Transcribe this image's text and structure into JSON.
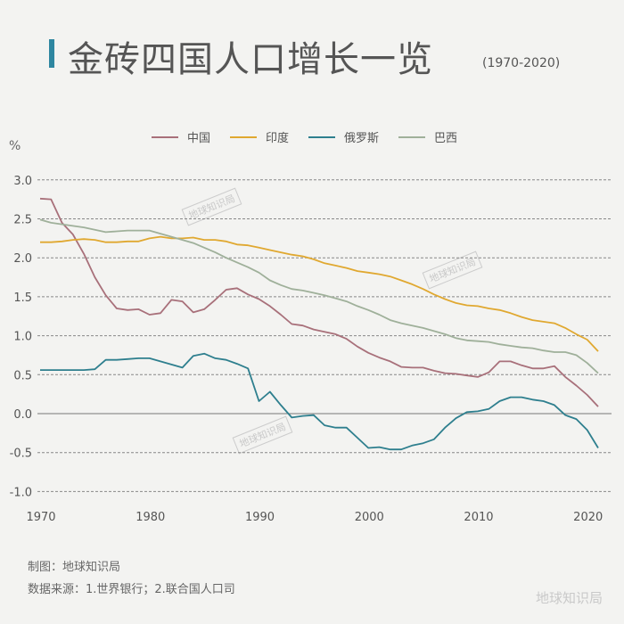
{
  "header": {
    "title": "金砖四国人口增长一览",
    "subtitle": "(1970-2020)"
  },
  "chart_data": {
    "type": "line",
    "title": "金砖四国人口增长一览",
    "subtitle": "(1970-2020)",
    "ylabel": "%",
    "xlabel": "",
    "xlim": [
      1970,
      2021
    ],
    "ylim": [
      -1.0,
      3.0
    ],
    "x_ticks": [
      "1970",
      "1980",
      "1990",
      "2000",
      "2010",
      "2020"
    ],
    "y_ticks": [
      "3.0",
      "2.5",
      "2.0",
      "1.5",
      "1.0",
      "0.5",
      "0.0",
      "-0.5",
      "-1.0"
    ],
    "grid": "horizontal dashed",
    "legend_position": "top",
    "x_start": 1970,
    "series": [
      {
        "name": "中国",
        "color": "#a8707a",
        "values": [
          2.76,
          2.75,
          2.45,
          2.3,
          2.05,
          1.75,
          1.52,
          1.35,
          1.33,
          1.34,
          1.27,
          1.29,
          1.46,
          1.44,
          1.3,
          1.34,
          1.46,
          1.59,
          1.61,
          1.53,
          1.47,
          1.38,
          1.27,
          1.15,
          1.13,
          1.08,
          1.05,
          1.02,
          0.96,
          0.86,
          0.78,
          0.72,
          0.67,
          0.6,
          0.59,
          0.59,
          0.55,
          0.52,
          0.51,
          0.49,
          0.47,
          0.53,
          0.67,
          0.67,
          0.62,
          0.58,
          0.58,
          0.61,
          0.47,
          0.36,
          0.24,
          0.09
        ]
      },
      {
        "name": "印度",
        "color": "#e0a830",
        "values": [
          2.2,
          2.2,
          2.21,
          2.23,
          2.24,
          2.23,
          2.2,
          2.2,
          2.21,
          2.21,
          2.25,
          2.27,
          2.25,
          2.25,
          2.26,
          2.23,
          2.23,
          2.21,
          2.17,
          2.16,
          2.13,
          2.1,
          2.07,
          2.04,
          2.02,
          1.98,
          1.93,
          1.9,
          1.87,
          1.83,
          1.81,
          1.79,
          1.76,
          1.71,
          1.66,
          1.6,
          1.53,
          1.47,
          1.42,
          1.39,
          1.38,
          1.35,
          1.33,
          1.29,
          1.24,
          1.2,
          1.18,
          1.16,
          1.1,
          1.02,
          0.95,
          0.8
        ]
      },
      {
        "name": "俄罗斯",
        "color": "#2e7f8e",
        "values": [
          0.56,
          0.56,
          0.56,
          0.56,
          0.56,
          0.57,
          0.69,
          0.69,
          0.7,
          0.71,
          0.71,
          0.67,
          0.63,
          0.59,
          0.74,
          0.77,
          0.71,
          0.69,
          0.64,
          0.58,
          0.16,
          0.28,
          0.11,
          -0.05,
          -0.03,
          -0.02,
          -0.15,
          -0.18,
          -0.18,
          -0.31,
          -0.44,
          -0.43,
          -0.46,
          -0.46,
          -0.41,
          -0.38,
          -0.33,
          -0.18,
          -0.06,
          0.02,
          0.03,
          0.06,
          0.16,
          0.21,
          0.21,
          0.18,
          0.16,
          0.11,
          -0.02,
          -0.07,
          -0.21,
          -0.44
        ]
      },
      {
        "name": "巴西",
        "color": "#9fb09a",
        "values": [
          2.49,
          2.45,
          2.43,
          2.41,
          2.39,
          2.36,
          2.33,
          2.34,
          2.35,
          2.35,
          2.35,
          2.31,
          2.27,
          2.23,
          2.19,
          2.13,
          2.07,
          2.0,
          1.94,
          1.88,
          1.81,
          1.71,
          1.65,
          1.6,
          1.58,
          1.55,
          1.52,
          1.48,
          1.44,
          1.38,
          1.33,
          1.27,
          1.2,
          1.16,
          1.13,
          1.1,
          1.06,
          1.02,
          0.97,
          0.94,
          0.93,
          0.92,
          0.89,
          0.87,
          0.85,
          0.84,
          0.81,
          0.79,
          0.79,
          0.75,
          0.65,
          0.52
        ]
      }
    ]
  },
  "footer": {
    "credit": "制图：地球知识局",
    "source": "数据来源：1.世界银行；2.联合国人口司"
  },
  "watermark": "地球知识局",
  "brand": "地球知识局"
}
